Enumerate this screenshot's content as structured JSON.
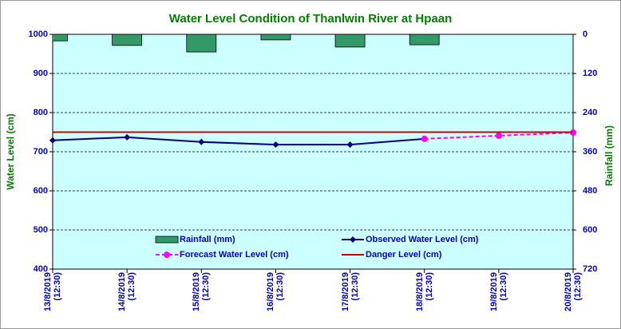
{
  "chart_data": {
    "type": "line",
    "title": "Water Level Condition of Thanlwin River at  Hpaan",
    "y_label": "Water Level (cm)",
    "y2_label": "Rainfall (mm)",
    "categories": [
      "13/8/2019\n(12:30)",
      "14/8/2019\n(12:30)",
      "15/8/2019\n(12:30)",
      "16/8/2019\n(12:30)",
      "17/8/2019\n(12:30)",
      "18/8/2019\n(12:30)",
      "19/8/2019\n(12:30)",
      "20/8/2019\n(12:30)"
    ],
    "ylim": [
      400,
      1000
    ],
    "yticks": [
      400,
      500,
      600,
      700,
      800,
      900,
      1000
    ],
    "y2lim": [
      720,
      0
    ],
    "y2ticks": [
      0,
      120,
      240,
      360,
      480,
      600,
      720
    ],
    "grid": true,
    "series": [
      {
        "name": "Rainfall (mm)",
        "type": "bar",
        "axis": "y2",
        "color": "#339966",
        "values": [
          20,
          34,
          54,
          17,
          39,
          32,
          null,
          null
        ]
      },
      {
        "name": "Observed Water Level (cm)",
        "type": "line",
        "marker": "diamond",
        "color": "#000080",
        "values": [
          729,
          737,
          725,
          718,
          718,
          733,
          null,
          null
        ]
      },
      {
        "name": "Forecast Water Level (cm)",
        "type": "line",
        "marker": "circle",
        "dashed": true,
        "color": "#ff00ff",
        "values": [
          null,
          null,
          null,
          null,
          null,
          733,
          741,
          749
        ]
      },
      {
        "name": "Danger Level (cm)",
        "type": "line",
        "color": "#cc0000",
        "values": [
          750,
          750,
          750,
          750,
          750,
          750,
          750,
          750
        ]
      }
    ]
  }
}
